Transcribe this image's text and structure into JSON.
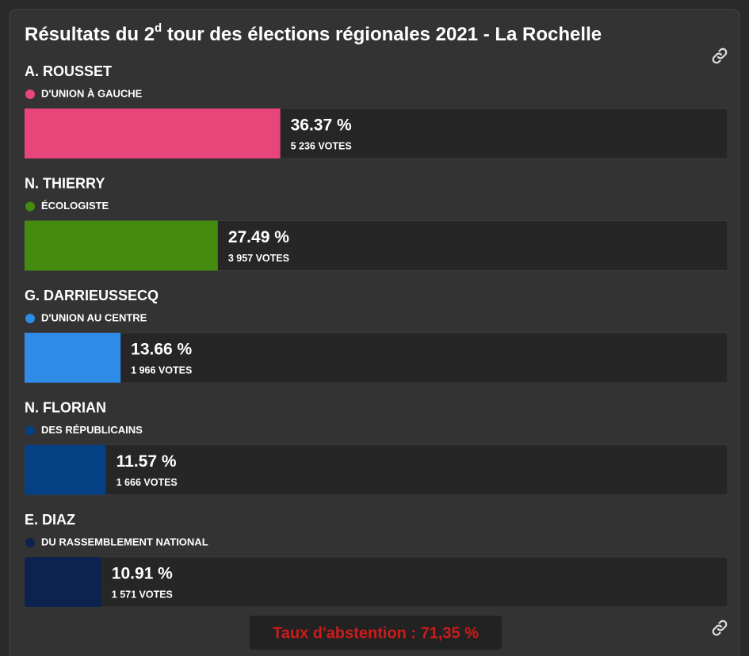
{
  "chart_data": {
    "type": "bar",
    "orientation": "horizontal",
    "title": [
      "Résultats du 2",
      "d",
      " tour des élections régionales 2021 - La Rochelle"
    ],
    "categories": [
      "A. ROUSSET",
      "N. THIERRY",
      "G. DARRIEUSSECQ",
      "N. FLORIAN",
      "E. DIAZ"
    ],
    "parties": [
      "D'UNION À GAUCHE",
      "ÉCOLOGISTE",
      "D'UNION AU CENTRE",
      "DES RÉPUBLICAINS",
      "DU RASSEMBLEMENT NATIONAL"
    ],
    "colors": [
      "#e8457a",
      "#458b0f",
      "#2e8ce6",
      "#053f84",
      "#0c2350"
    ],
    "values": [
      36.37,
      27.49,
      13.66,
      11.57,
      10.91
    ],
    "value_labels": [
      "36.37 %",
      "27.49 %",
      "13.66 %",
      "11.57 %",
      "10.91 %"
    ],
    "votes": [
      5236,
      3957,
      1966,
      1666,
      1571
    ],
    "votes_labels": [
      "5 236 VOTES",
      "3 957 VOTES",
      "1 966 VOTES",
      "1 666 VOTES",
      "1 571 VOTES"
    ],
    "xlim": [
      0,
      100
    ],
    "footnote": "Taux d'abstention : 71,35 %"
  }
}
